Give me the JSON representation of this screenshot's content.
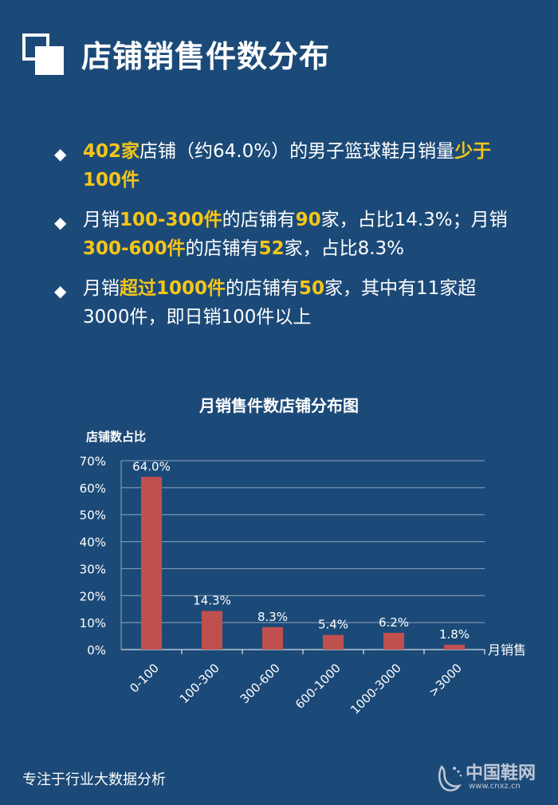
{
  "header": {
    "title": "店铺销售件数分布"
  },
  "bullets": [
    {
      "parts": [
        {
          "t": "402家",
          "hl": true
        },
        {
          "t": "店铺（约64.0%）的男子篮球鞋月销量",
          "hl": false
        },
        {
          "t": "少于100件",
          "hl": true
        }
      ]
    },
    {
      "parts": [
        {
          "t": "月销",
          "hl": false
        },
        {
          "t": "100-300件",
          "hl": true
        },
        {
          "t": "的店铺有",
          "hl": false
        },
        {
          "t": "90",
          "hl": true
        },
        {
          "t": "家，占比14.3%；月销",
          "hl": false
        },
        {
          "t": "300-600件",
          "hl": true
        },
        {
          "t": "的店铺有",
          "hl": false
        },
        {
          "t": "52",
          "hl": true
        },
        {
          "t": "家，占比8.3%",
          "hl": false
        }
      ]
    },
    {
      "parts": [
        {
          "t": "月销",
          "hl": false
        },
        {
          "t": "超过1000件",
          "hl": true
        },
        {
          "t": "的店铺有",
          "hl": false
        },
        {
          "t": "50",
          "hl": true
        },
        {
          "t": "家，其中有11家超3000件，即日销100件以上",
          "hl": false
        }
      ]
    }
  ],
  "footer": {
    "text": "专注于行业大数据分析"
  },
  "watermark": {
    "text": "中国鞋网",
    "url": "www.cnxz.cn"
  },
  "colors": {
    "background": "#1c4a78",
    "bar": "#c0504d",
    "highlight": "#f5c518",
    "grid": "#8fa6c0"
  },
  "chart_data": {
    "type": "bar",
    "title": "月销售件数店铺分布图",
    "ylabel": "店铺数占比",
    "xlabel": "月销售",
    "categories": [
      "0-100",
      "100-300",
      "300-600",
      "600-1000",
      "1000-3000",
      ">3000"
    ],
    "values": [
      64.0,
      14.3,
      8.3,
      5.4,
      6.2,
      1.8
    ],
    "data_labels": [
      "64.0%",
      "14.3%",
      "8.3%",
      "5.4%",
      "6.2%",
      "1.8%"
    ],
    "yticks": [
      0,
      10,
      20,
      30,
      40,
      50,
      60,
      70
    ],
    "ytick_labels": [
      "0%",
      "10%",
      "20%",
      "30%",
      "40%",
      "50%",
      "60%",
      "70%"
    ],
    "ylim": [
      0,
      70
    ],
    "grid": true
  }
}
